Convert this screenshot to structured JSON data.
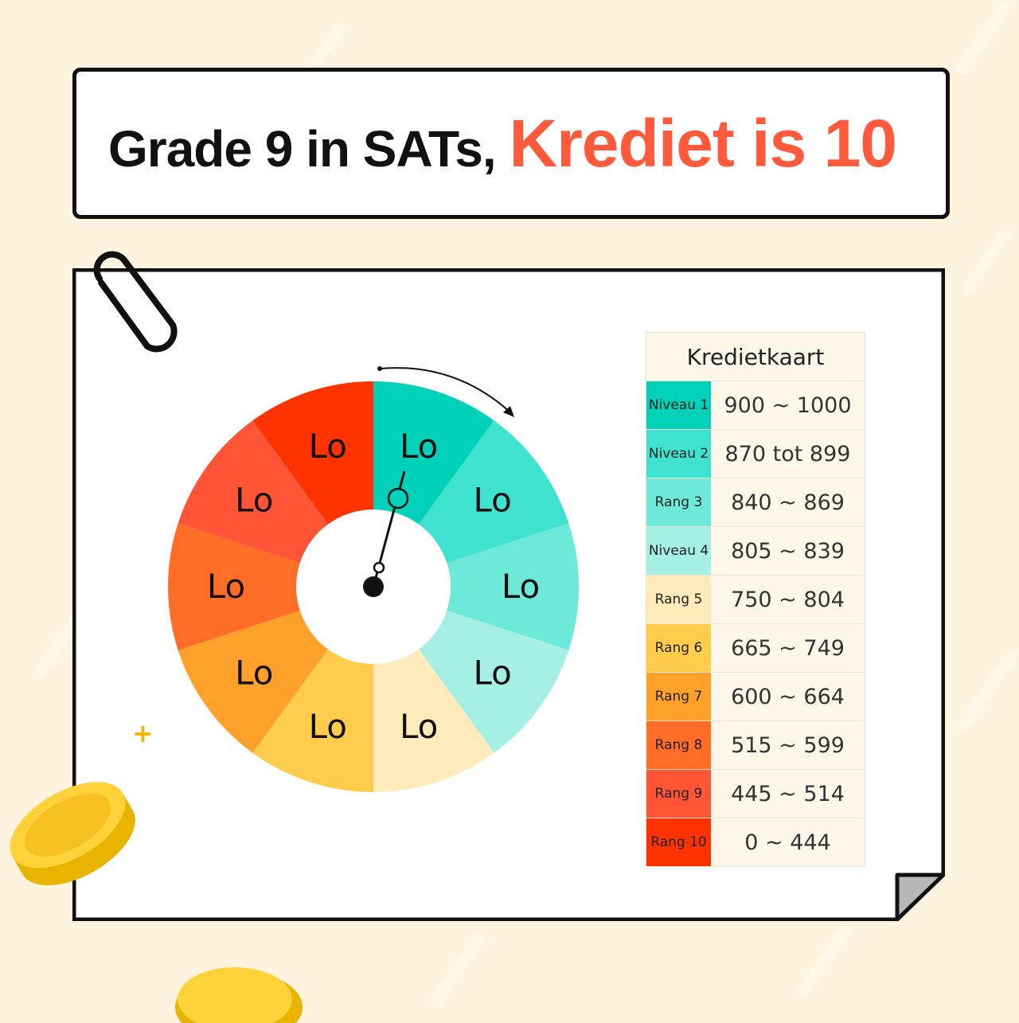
{
  "title": {
    "prefix": "Grade 9 in SATs,",
    "highlight": "Krediet is 10",
    "highlight_color": "#ff5a3c"
  },
  "wheel": {
    "segment_label": "Lo",
    "segments": [
      {
        "label": "Lo",
        "color": "#00d1b8"
      },
      {
        "label": "Lo",
        "color": "#3ee2cf"
      },
      {
        "label": "Lo",
        "color": "#6de9da"
      },
      {
        "label": "Lo",
        "color": "#a5efe4"
      },
      {
        "label": "Lo",
        "color": "#ffeab9"
      },
      {
        "label": "Lo",
        "color": "#ffcd4b"
      },
      {
        "label": "Lo",
        "color": "#ffa02b"
      },
      {
        "label": "Lo",
        "color": "#ff6d27"
      },
      {
        "label": "Lo",
        "color": "#ff5436"
      },
      {
        "label": "Lo",
        "color": "#ff3300"
      }
    ],
    "pointer_direction": "clockwise"
  },
  "table": {
    "title": "Kredietkaart",
    "rows": [
      {
        "level": "Niveau 1",
        "range": "900 ~ 1000",
        "color": "#00d1b8"
      },
      {
        "level": "Niveau 2",
        "range": "870 tot 899",
        "color": "#3ee2cf"
      },
      {
        "level": "Rang 3",
        "range": "840 ~ 869",
        "color": "#6de9da"
      },
      {
        "level": "Niveau 4",
        "range": "805 ~ 839",
        "color": "#a5efe4"
      },
      {
        "level": "Rang 5",
        "range": "750 ~ 804",
        "color": "#ffeab9"
      },
      {
        "level": "Rang 6",
        "range": "665 ~ 749",
        "color": "#ffcd4b"
      },
      {
        "level": "Rang 7",
        "range": "600 ~ 664",
        "color": "#ffa02b"
      },
      {
        "level": "Rang 8",
        "range": "515 ~ 599",
        "color": "#ff6d27"
      },
      {
        "level": "Rang 9",
        "range": "445 ~ 514",
        "color": "#ff5436"
      },
      {
        "level": "Rang 10",
        "range": "0 ~ 444",
        "color": "#ff3300"
      }
    ]
  }
}
